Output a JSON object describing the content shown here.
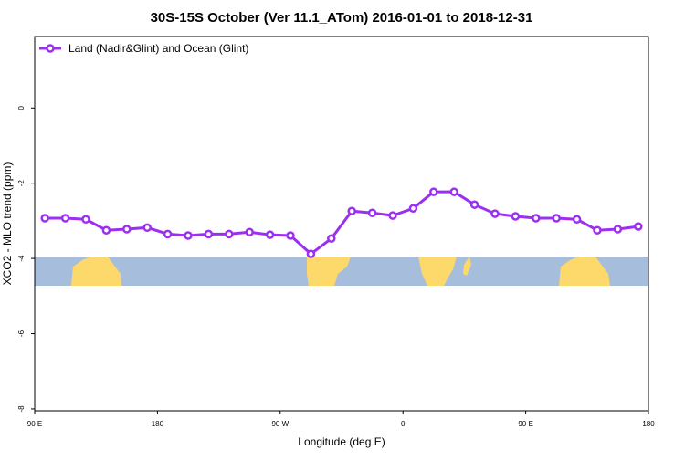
{
  "chart_data": {
    "type": "line",
    "title": "30S-15S October (Ver 11.1_ATom)   2016-01-01 to 2018-12-31",
    "x_label": "Longitude (deg E)",
    "y_label": "XCO2 - MLO trend (ppm)",
    "x": [
      97.5,
      112.5,
      127.5,
      142.5,
      157.5,
      172.5,
      187.5,
      202.5,
      217.5,
      232.5,
      247.5,
      262.5,
      277.5,
      292.5,
      307.5,
      322.5,
      337.5,
      352.5,
      367.5,
      382.5,
      397.5,
      412.5,
      427.5,
      442.5,
      457.5,
      472.5,
      487.5,
      502.5,
      517.5,
      532.5
    ],
    "series": [
      {
        "name": "Land (Nadir&Glint) and Ocean (Glint)",
        "color": "#9b30f0",
        "values": [
          -2.93,
          -2.93,
          -2.96,
          -3.25,
          -3.22,
          -3.18,
          -3.35,
          -3.39,
          -3.35,
          -3.35,
          -3.3,
          -3.37,
          -3.39,
          -3.88,
          -3.47,
          -2.74,
          -2.79,
          -2.86,
          -2.67,
          -2.23,
          -2.23,
          -2.57,
          -2.81,
          -2.88,
          -2.93,
          -2.93,
          -2.96,
          -3.25,
          -3.22,
          -3.15
        ]
      }
    ],
    "xlim": [
      90,
      540
    ],
    "xticks": [
      {
        "value": 90,
        "label": "90 E"
      },
      {
        "value": 180,
        "label": "180"
      },
      {
        "value": 270,
        "label": "90 W"
      },
      {
        "value": 360,
        "label": "0"
      },
      {
        "value": 450,
        "label": "90 E"
      },
      {
        "value": 540,
        "label": "180"
      }
    ],
    "ylim": [
      -8.05,
      1.9
    ],
    "yticks": [
      0,
      -2,
      -4,
      -6,
      -8
    ],
    "legend": "top-left"
  }
}
